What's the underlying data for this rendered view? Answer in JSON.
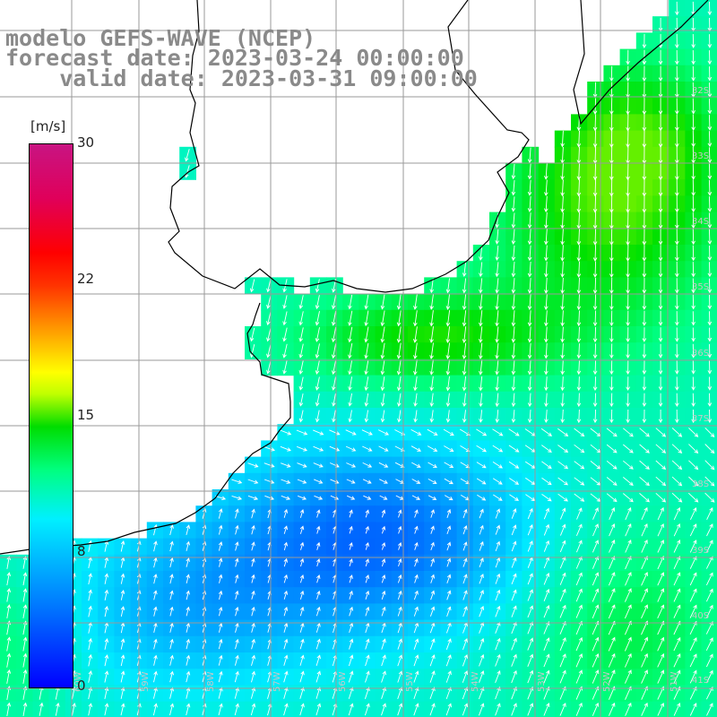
{
  "title": {
    "line1": "modelo GEFS-WAVE (NCEP)",
    "line2": "forecast date: 2023-03-24 00:00:00",
    "line3": "    valid date: 2023-03-31 09:00:00"
  },
  "colorbar": {
    "unit": "[m/s]",
    "ticks": [
      "30",
      "22",
      "15",
      "8",
      "0"
    ],
    "colors": [
      "#0000ff",
      "#00f0ff",
      "#00dd00",
      "#ffff00",
      "#ff0000",
      "#c81482"
    ]
  },
  "lat_labels": [
    "32S",
    "33S",
    "34S",
    "35S",
    "36S",
    "37S",
    "38S",
    "39S",
    "40S",
    "41S"
  ],
  "lon_labels": [
    "60W",
    "59W",
    "58W",
    "57W",
    "56W",
    "55W",
    "54W",
    "53W",
    "52W",
    "51W"
  ],
  "map_data": {
    "variable": "wind speed",
    "unit": "m/s",
    "lon_range": [
      "60W",
      "50W"
    ],
    "lat_range": [
      "31S",
      "41S"
    ]
  }
}
